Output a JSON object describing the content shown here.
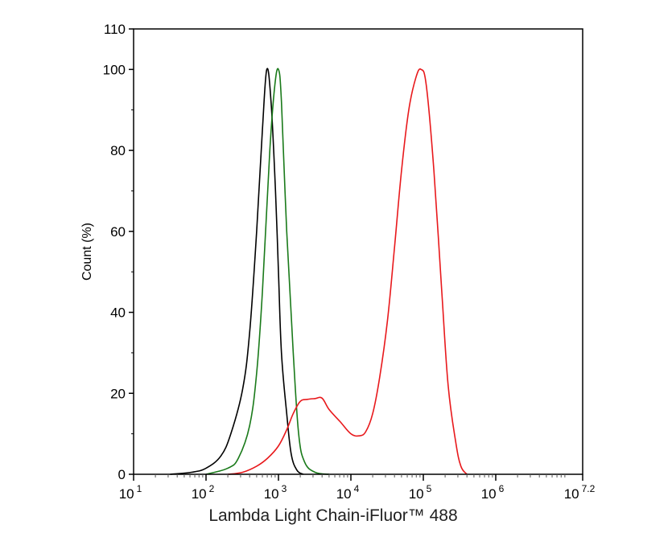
{
  "chart_data": {
    "type": "line",
    "title": "",
    "xlabel": "Lambda Light Chain-iFluor™ 488",
    "ylabel": "Count  (%)",
    "x_scale": "log10",
    "xlim": [
      10,
      15848932
    ],
    "ylim": [
      0,
      110
    ],
    "x_ticks": [
      {
        "base": "10",
        "exp": "1",
        "value": 10
      },
      {
        "base": "10",
        "exp": "2",
        "value": 100
      },
      {
        "base": "10",
        "exp": "3",
        "value": 1000
      },
      {
        "base": "10",
        "exp": "4",
        "value": 10000
      },
      {
        "base": "10",
        "exp": "5",
        "value": 100000
      },
      {
        "base": "10",
        "exp": "6",
        "value": 1000000
      },
      {
        "base": "10",
        "exp": "7.2",
        "value": 15848932
      }
    ],
    "y_ticks": [
      "0",
      "20",
      "40",
      "60",
      "80",
      "100",
      "110"
    ],
    "grid": false,
    "legend": "none",
    "series": [
      {
        "color": "#000000",
        "x": [
          32,
          63,
          100,
          160,
          220,
          320,
          400,
          500,
          600,
          690,
          790,
          910,
          1000,
          1100,
          1300,
          1500,
          1800,
          2200
        ],
        "y": [
          0,
          0.5,
          1.5,
          4.5,
          10,
          21,
          35,
          60,
          85,
          100,
          92,
          70,
          50,
          30,
          15,
          5,
          1,
          0
        ]
      },
      {
        "color": "#1a7a1a",
        "x": [
          100,
          200,
          280,
          400,
          500,
          600,
          760,
          890,
          1000,
          1100,
          1300,
          1600,
          1900,
          2300,
          3200,
          5000
        ],
        "y": [
          0,
          1.5,
          4,
          12,
          25,
          45,
          80,
          96,
          100,
          92,
          60,
          30,
          10,
          3,
          0.5,
          0
        ]
      },
      {
        "color": "#e8191c",
        "x": [
          200,
          320,
          500,
          710,
          1000,
          1300,
          1600,
          2000,
          2500,
          3200,
          4000,
          5000,
          7100,
          10000,
          13000,
          16000,
          20000,
          25000,
          32000,
          40000,
          50000,
          63000,
          79000,
          93000,
          110000,
          140000,
          180000,
          220000,
          280000,
          330000,
          400000
        ],
        "y": [
          0,
          0.5,
          2,
          4,
          7,
          11,
          15,
          18,
          18.5,
          18.7,
          18.8,
          16,
          13,
          10,
          9.5,
          10.5,
          15,
          24,
          38,
          56,
          75,
          90,
          98,
          100,
          96,
          75,
          45,
          22,
          8,
          2,
          0
        ]
      }
    ]
  }
}
